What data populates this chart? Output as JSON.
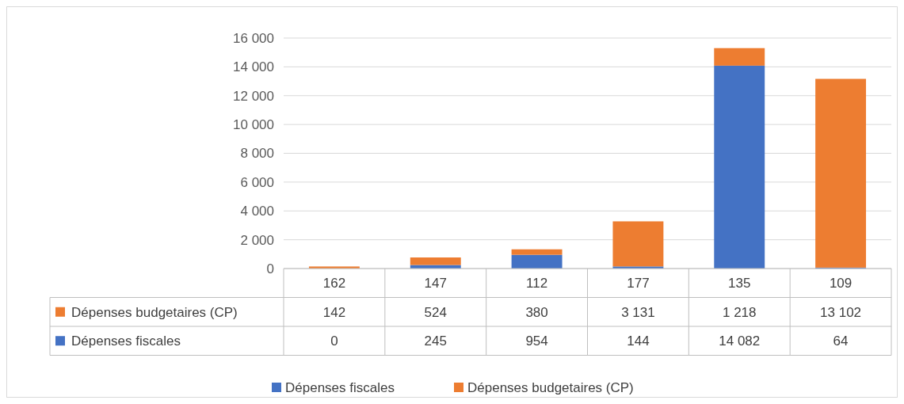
{
  "chart_data": {
    "type": "bar",
    "stacked": true,
    "categories": [
      "162",
      "147",
      "112",
      "177",
      "135",
      "109"
    ],
    "series": [
      {
        "name": "Dépenses fiscales",
        "color": "#4472c4",
        "values": [
          0,
          245,
          954,
          144,
          14082,
          64
        ],
        "value_labels": [
          "0",
          "245",
          "954",
          "144",
          "14 082",
          "64"
        ]
      },
      {
        "name": "Dépenses budgetaires (CP)",
        "color": "#ed7d31",
        "values": [
          142,
          524,
          380,
          3131,
          1218,
          13102
        ],
        "value_labels": [
          "142",
          "524",
          "380",
          "3 131",
          "1 218",
          "13 102"
        ]
      }
    ],
    "ylim": [
      0,
      16000
    ],
    "yticks": [
      0,
      {
        "value": 2000,
        "label": "2 000"
      },
      {
        "value": 4000,
        "label": "4 000"
      },
      {
        "value": 6000,
        "label": "6 000"
      },
      {
        "value": 8000,
        "label": "8 000"
      },
      {
        "value": 10000,
        "label": "10 000"
      },
      {
        "value": 12000,
        "label": "12 000"
      },
      {
        "value": 14000,
        "label": "14 000"
      },
      {
        "value": 16000,
        "label": "16 000"
      }
    ],
    "grid": "y",
    "legend": "bottom"
  }
}
